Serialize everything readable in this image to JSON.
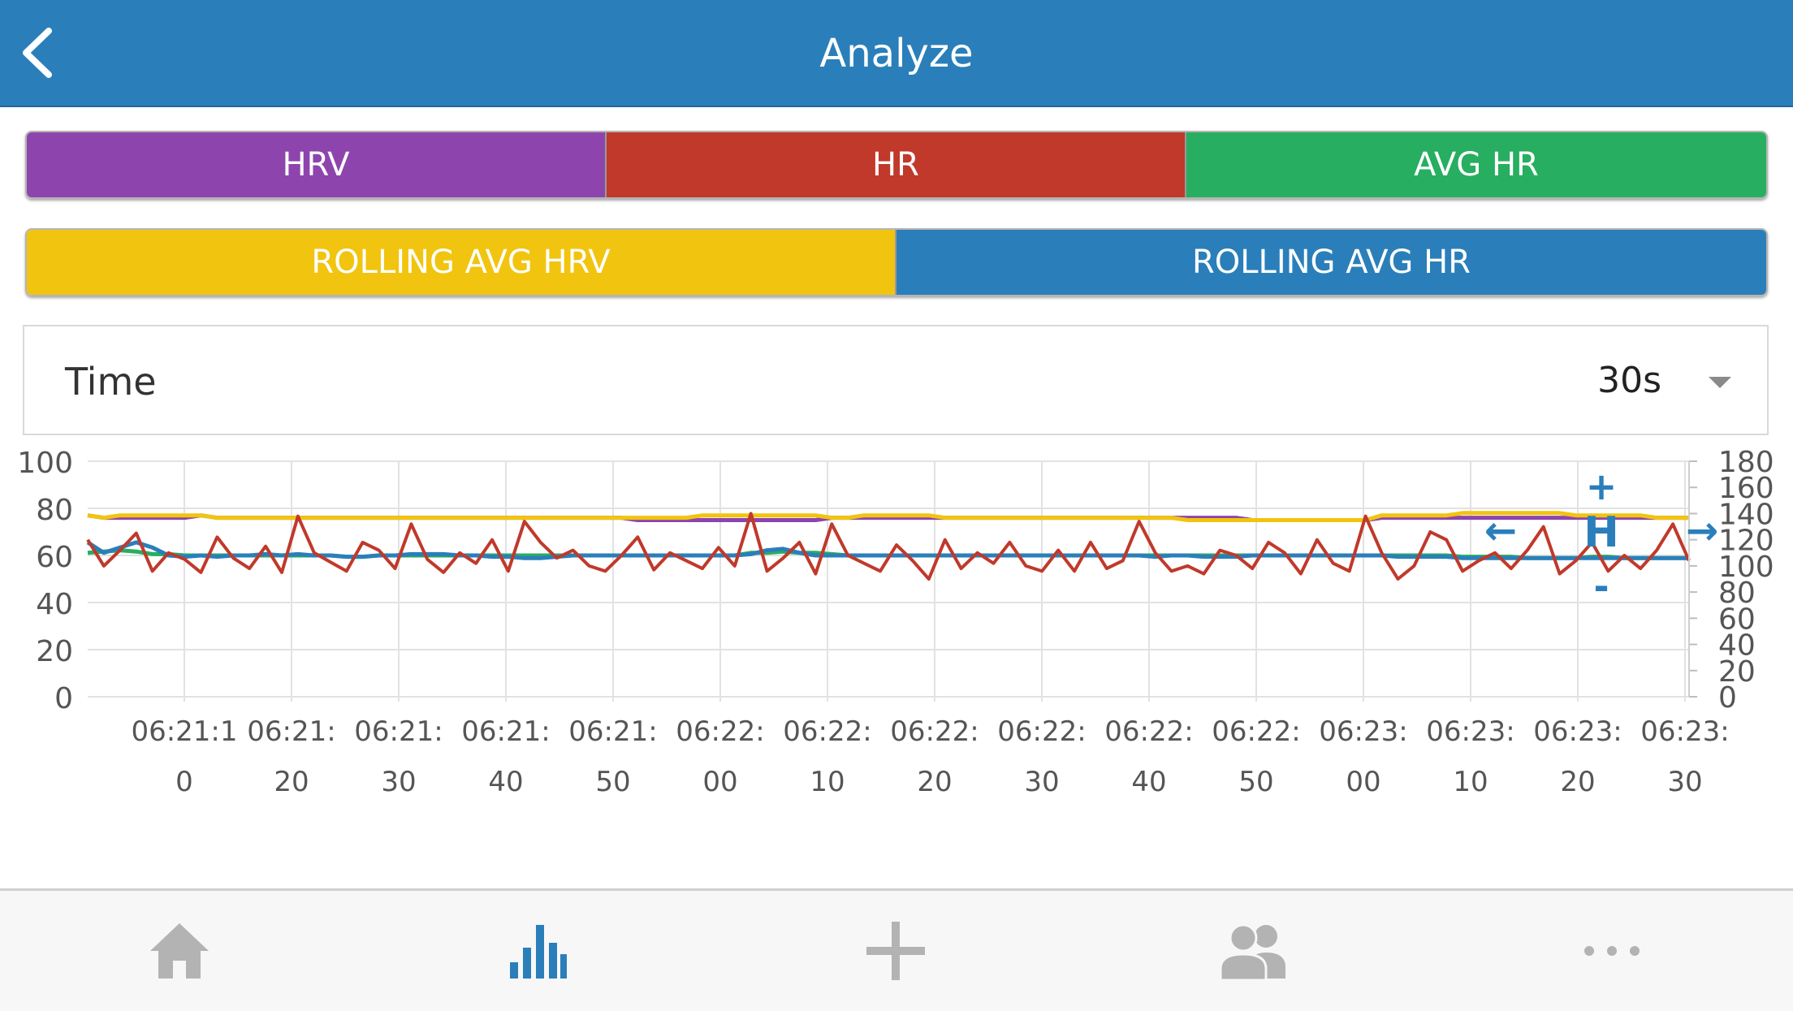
{
  "header": {
    "title": "Analyze"
  },
  "series_buttons": {
    "row1": [
      {
        "label": "HRV",
        "color": "#8e44ad"
      },
      {
        "label": "HR",
        "color": "#c0392b"
      },
      {
        "label": "AVG HR",
        "color": "#27ae60"
      }
    ],
    "row2": [
      {
        "label": "ROLLING AVG HRV",
        "color": "#f1c40f"
      },
      {
        "label": "ROLLING AVG HR",
        "color": "#2a7fba"
      }
    ]
  },
  "time_selector": {
    "label": "Time",
    "value": "30s"
  },
  "chart_data": {
    "type": "line",
    "x_tick_labels": [
      [
        "06:21:1",
        "0"
      ],
      [
        "06:21:",
        "20"
      ],
      [
        "06:21:",
        "30"
      ],
      [
        "06:21:",
        "40"
      ],
      [
        "06:21:",
        "50"
      ],
      [
        "06:22:",
        "00"
      ],
      [
        "06:22:",
        "10"
      ],
      [
        "06:22:",
        "20"
      ],
      [
        "06:22:",
        "30"
      ],
      [
        "06:22:",
        "40"
      ],
      [
        "06:22:",
        "50"
      ],
      [
        "06:23:",
        "00"
      ],
      [
        "06:23:",
        "10"
      ],
      [
        "06:23:",
        "20"
      ],
      [
        "06:23:",
        "30"
      ]
    ],
    "y_left": {
      "ticks": [
        "100",
        "80",
        "60",
        "40",
        "20",
        "0"
      ],
      "min": 0,
      "max": 100
    },
    "y_right": {
      "ticks": [
        "180",
        "160",
        "140",
        "120",
        "100",
        "80",
        "60",
        "40",
        "20",
        "0"
      ],
      "min": 0,
      "max": 180
    },
    "series": [
      {
        "key": "hrv",
        "color": "#8e44ad",
        "axis": "left",
        "x_range": [
          "06:21:06",
          "06:23:31"
        ],
        "values": [
          77,
          76,
          76,
          76,
          76,
          76,
          76,
          77,
          76,
          76,
          76,
          76,
          76,
          76,
          76,
          76,
          76,
          76,
          76,
          76,
          76,
          76,
          76,
          76,
          76,
          76,
          76,
          76,
          76,
          76,
          76,
          76,
          76,
          76,
          75,
          75,
          75,
          75,
          75,
          75,
          75,
          75,
          75,
          75,
          75,
          75,
          76,
          76,
          76,
          76,
          76,
          76,
          76,
          76,
          76,
          76,
          76,
          76,
          76,
          76,
          76,
          76,
          76,
          76,
          76,
          76,
          76,
          76,
          76,
          76,
          76,
          76,
          75,
          75,
          75,
          75,
          75,
          75,
          75,
          75,
          76,
          76,
          76,
          76,
          76,
          76,
          76,
          76,
          76,
          76,
          76,
          76,
          76,
          76,
          76,
          76,
          76,
          76,
          76,
          76
        ]
      },
      {
        "key": "rolling_avg_hrv",
        "color": "#f1c40f",
        "axis": "left",
        "x_range": [
          "06:21:06",
          "06:23:31"
        ],
        "values": [
          77,
          76,
          77,
          77,
          77,
          77,
          77,
          77,
          76,
          76,
          76,
          76,
          76,
          76,
          76,
          76,
          76,
          76,
          76,
          76,
          76,
          76,
          76,
          76,
          76,
          76,
          76,
          76,
          76,
          76,
          76,
          76,
          76,
          76,
          76,
          76,
          76,
          76,
          77,
          77,
          77,
          77,
          77,
          77,
          77,
          77,
          76,
          76,
          77,
          77,
          77,
          77,
          77,
          76,
          76,
          76,
          76,
          76,
          76,
          76,
          76,
          76,
          76,
          76,
          76,
          76,
          76,
          76,
          75,
          75,
          75,
          75,
          75,
          75,
          75,
          75,
          75,
          75,
          75,
          75,
          77,
          77,
          77,
          77,
          77,
          78,
          78,
          78,
          78,
          78,
          78,
          78,
          77,
          77,
          77,
          77,
          77,
          76,
          76,
          76
        ]
      },
      {
        "key": "avg_hr",
        "color": "#27ae60",
        "axis": "right",
        "x_range": [
          "06:21:06",
          "06:23:31"
        ],
        "values": [
          110,
          111,
          112,
          111,
          109,
          109,
          108,
          108,
          108,
          108,
          108,
          108,
          108,
          108,
          108,
          108,
          107,
          107,
          108,
          108,
          108,
          108,
          108,
          108,
          108,
          108,
          108,
          108,
          108,
          108,
          108,
          108,
          108,
          108,
          108,
          108,
          108,
          108,
          108,
          108,
          108,
          110,
          110,
          111,
          110,
          110,
          109,
          108,
          108,
          108,
          108,
          108,
          108,
          108,
          108,
          108,
          108,
          108,
          108,
          108,
          108,
          108,
          108,
          108,
          108,
          108,
          108,
          108,
          108,
          108,
          108,
          108,
          108,
          108,
          108,
          108,
          108,
          108,
          108,
          108,
          108,
          108,
          108,
          108,
          108,
          107,
          107,
          107,
          107,
          106,
          106,
          106,
          106,
          107,
          107,
          106,
          106,
          106,
          106,
          106
        ]
      },
      {
        "key": "rolling_avg_hr",
        "color": "#2a7fba",
        "axis": "right",
        "x_range": [
          "06:21:06",
          "06:23:31"
        ],
        "values": [
          118,
          110,
          114,
          118,
          114,
          108,
          107,
          108,
          107,
          108,
          108,
          109,
          108,
          109,
          108,
          108,
          107,
          107,
          108,
          108,
          109,
          109,
          109,
          108,
          108,
          107,
          107,
          106,
          106,
          107,
          108,
          108,
          108,
          108,
          108,
          108,
          108,
          108,
          108,
          108,
          108,
          109,
          112,
          113,
          110,
          108,
          108,
          108,
          108,
          108,
          108,
          108,
          108,
          108,
          108,
          108,
          108,
          108,
          108,
          108,
          108,
          108,
          108,
          108,
          108,
          108,
          107,
          108,
          108,
          107,
          107,
          107,
          108,
          108,
          108,
          108,
          108,
          108,
          108,
          108,
          108,
          107,
          107,
          107,
          107,
          106,
          106,
          106,
          106,
          106,
          106,
          106,
          106,
          106,
          106,
          106,
          106,
          106,
          106,
          106
        ]
      },
      {
        "key": "hr",
        "color": "#c0392b",
        "axis": "right",
        "x_range": [
          "06:21:06",
          "06:23:31"
        ],
        "values": [
          120,
          100,
          112,
          125,
          96,
          110,
          105,
          95,
          122,
          106,
          98,
          115,
          95,
          138,
          110,
          103,
          96,
          118,
          112,
          98,
          132,
          105,
          95,
          110,
          102,
          120,
          96,
          134,
          118,
          106,
          112,
          100,
          96,
          108,
          122,
          97,
          110,
          104,
          98,
          114,
          100,
          140,
          96,
          106,
          118,
          94,
          132,
          108,
          102,
          96,
          116,
          104,
          90,
          120,
          98,
          110,
          102,
          118,
          100,
          96,
          112,
          96,
          118,
          98,
          104,
          134,
          110,
          96,
          100,
          94,
          112,
          108,
          98,
          118,
          110,
          94,
          120,
          102,
          96,
          138,
          110,
          90,
          100,
          126,
          120,
          96,
          104,
          110,
          98,
          112,
          130,
          94,
          104,
          118,
          96,
          108,
          98,
          112,
          132,
          104
        ]
      }
    ]
  },
  "zoom_controls": {
    "plus": "+",
    "minus": "-",
    "reset": "H",
    "left": "←",
    "right": "→"
  },
  "tab_bar": {
    "items": [
      {
        "key": "home",
        "icon": "home-icon"
      },
      {
        "key": "analyze",
        "icon": "bar-chart-icon"
      },
      {
        "key": "add",
        "icon": "plus-icon"
      },
      {
        "key": "users",
        "icon": "users-icon"
      },
      {
        "key": "more",
        "icon": "more-icon"
      }
    ],
    "active": "analyze",
    "active_color": "#2a7fba",
    "inactive_color": "#b3b3b3"
  }
}
